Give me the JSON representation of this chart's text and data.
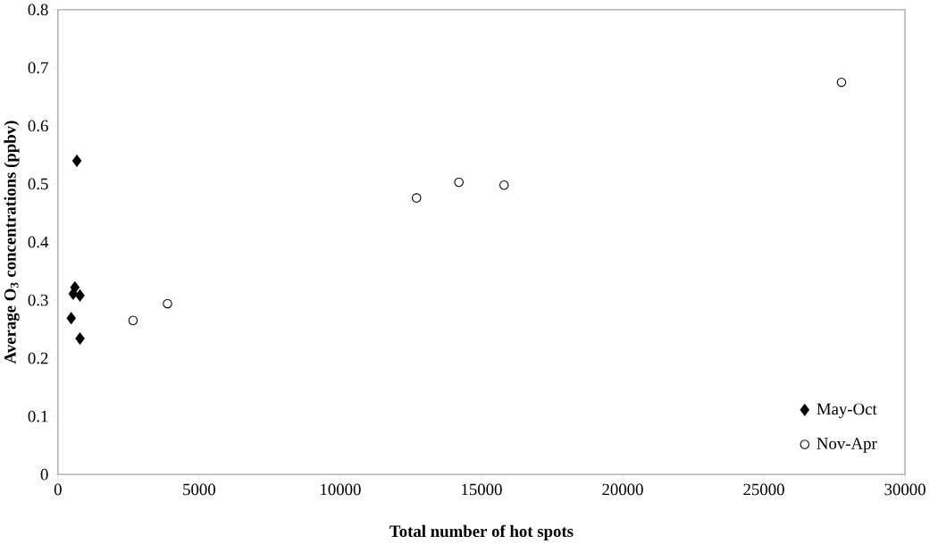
{
  "chart_data": {
    "type": "scatter",
    "xlabel": "Total number of hot spots",
    "ylabel": "Average O$_{3}$ concentrations (ppbv)",
    "xlim": [
      0,
      30000
    ],
    "ylim": [
      0,
      0.8
    ],
    "xticks": [
      0,
      5000,
      10000,
      15000,
      20000,
      25000,
      30000
    ],
    "yticks": [
      0,
      0.1,
      0.2,
      0.3,
      0.4,
      0.5,
      0.6,
      0.7,
      0.8
    ],
    "grid": false,
    "legend": "bottom right",
    "series": [
      {
        "name": "May-Oct",
        "color": "#000000",
        "marker": "diamond",
        "x": [
          670,
          600,
          540,
          780,
          470,
          780
        ],
        "values": [
          0.54,
          0.322,
          0.311,
          0.308,
          0.269,
          0.234
        ]
      },
      {
        "name": "Nov-Apr",
        "color": "#000000",
        "marker": "circle",
        "x": [
          2660,
          3880,
          12700,
          14200,
          15800,
          27750
        ],
        "values": [
          0.265,
          0.294,
          0.476,
          0.503,
          0.498,
          0.675
        ]
      }
    ]
  }
}
